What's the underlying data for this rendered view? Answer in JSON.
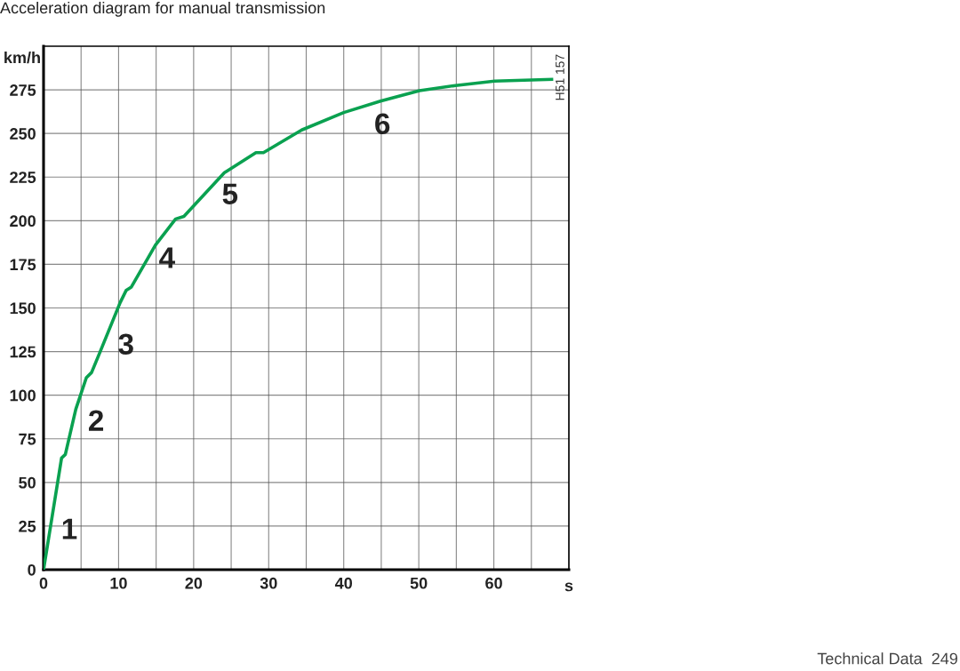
{
  "chart_data": {
    "type": "line",
    "title": "Acceleration diagram for manual transmission",
    "xlabel": "s",
    "ylabel": "km/h",
    "x": [
      0,
      2.4,
      2.9,
      4.3,
      5.7,
      6.4,
      7.5,
      10.2,
      11.0,
      11.7,
      14.9,
      17.6,
      18.7,
      24.1,
      28.3,
      29.3,
      34.4,
      40.0,
      44.9,
      50.1,
      54.9,
      60.1,
      67.7
    ],
    "series": [
      {
        "color": "#0aa150",
        "values": [
          0,
          64,
          66,
          92,
          110,
          113,
          124.5,
          153,
          160,
          162,
          186,
          201,
          202.5,
          227.5,
          239,
          239,
          252,
          262,
          268.5,
          274.5,
          277.5,
          280,
          281
        ]
      }
    ],
    "xlim": [
      0,
      70
    ],
    "ylim": [
      0,
      300
    ],
    "xticks": [
      0,
      {
        "value": 5,
        "label": null
      },
      10,
      {
        "value": 15,
        "label": null
      },
      20,
      {
        "value": 25,
        "label": null
      },
      30,
      {
        "value": 35,
        "label": null
      },
      40,
      {
        "value": 45,
        "label": null
      },
      50,
      {
        "value": 55,
        "label": null
      },
      60,
      {
        "value": 65,
        "label": null
      }
    ],
    "yticks": [
      0,
      25,
      50,
      75,
      100,
      125,
      150,
      175,
      200,
      225,
      250,
      275
    ],
    "grid": true,
    "marker": "none",
    "line_style": "solid",
    "annotations": [
      "1",
      "2",
      "3",
      "4",
      "5",
      "6",
      "H51 157",
      "Technical Data  249"
    ]
  }
}
